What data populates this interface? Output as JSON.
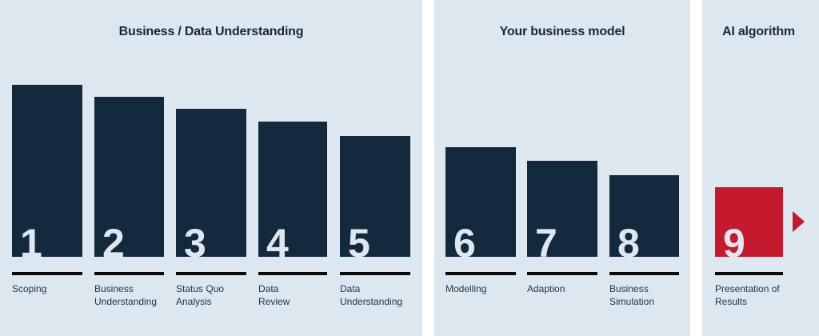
{
  "phases": [
    {
      "title": "Business / Data Understanding"
    },
    {
      "title": "Your business model"
    },
    {
      "title": "AI algorithm"
    }
  ],
  "steps": [
    {
      "number": "1",
      "label": "Scoping"
    },
    {
      "number": "2",
      "label": "Business\nUnderstanding"
    },
    {
      "number": "3",
      "label": "Status Quo\nAnalysis"
    },
    {
      "number": "4",
      "label": "Data\nReview"
    },
    {
      "number": "5",
      "label": "Data\nUnderstanding"
    },
    {
      "number": "6",
      "label": "Modelling"
    },
    {
      "number": "7",
      "label": "Adaption"
    },
    {
      "number": "8",
      "label": "Business\nSimulation"
    },
    {
      "number": "9",
      "label": "Presentation of\nResults"
    }
  ],
  "colors": {
    "background_panel": "#dde7f0",
    "bar": "#132a3c",
    "highlight": "#c51a2e",
    "rule": "#0a0a0a"
  },
  "icons": {
    "next_arrow": "arrow-right-icon"
  }
}
